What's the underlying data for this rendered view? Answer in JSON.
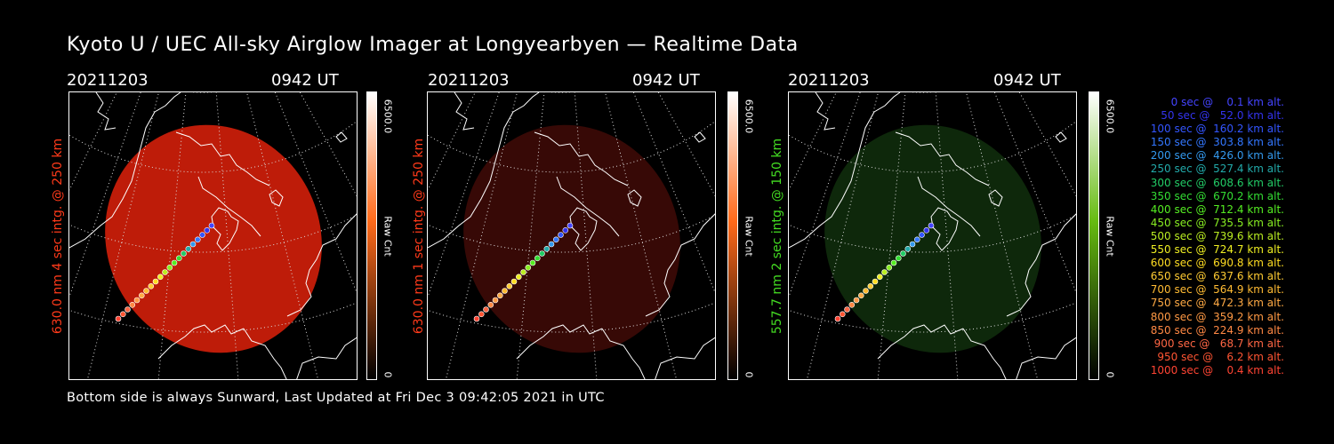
{
  "title": "Kyoto U / UEC All-sky Airglow Imager at Longyearbyen — Realtime Data",
  "footer": "Bottom side is always Sunward, Last Updated at Fri Dec  3 09:42:05 2021 in UTC",
  "panels": [
    {
      "date": "20211203",
      "time": "0942 UT",
      "ylabel": "630.0 nm 4 sec intg. @ 250 km",
      "label_color": "#ff3a1a",
      "tone": "#c81e0a",
      "tone_opacity": 0.95,
      "colorbar": {
        "max": "6500.0",
        "unit": "Raw Cnt",
        "min": "0",
        "top_color": "#ffffff",
        "mid_color": "#ff6a1a",
        "bottom_color": "#000000"
      }
    },
    {
      "date": "20211203",
      "time": "0942 UT",
      "ylabel": "630.0 nm 1 sec intg. @ 250 km",
      "label_color": "#ff3a1a",
      "tone": "#3a0a06",
      "tone_opacity": 0.95,
      "colorbar": {
        "max": "6500.0",
        "unit": "Raw Cnt",
        "min": "0",
        "top_color": "#ffffff",
        "mid_color": "#ff6a1a",
        "bottom_color": "#000000"
      }
    },
    {
      "date": "20211203",
      "time": "0942 UT",
      "ylabel": "557.7 nm 2 sec intg. @ 150 km",
      "label_color": "#44dd22",
      "tone": "#0f2a0c",
      "tone_opacity": 0.95,
      "colorbar": {
        "max": "6500.0",
        "unit": "Raw Cnt",
        "min": "0",
        "top_color": "#ffffff",
        "mid_color": "#66bb11",
        "bottom_color": "#000000"
      }
    }
  ],
  "legend": [
    {
      "text": "   0 sec @    0.1 km alt.",
      "color": "#4444ff"
    },
    {
      "text": "  50 sec @   52.0 km alt.",
      "color": "#3333ee"
    },
    {
      "text": " 100 sec @  160.2 km alt.",
      "color": "#3355ff"
    },
    {
      "text": " 150 sec @  303.8 km alt.",
      "color": "#3377ff"
    },
    {
      "text": " 200 sec @  426.0 km alt.",
      "color": "#3399ee"
    },
    {
      "text": " 250 sec @  527.4 km alt.",
      "color": "#22aaaa"
    },
    {
      "text": " 300 sec @  608.6 km alt.",
      "color": "#22cc66"
    },
    {
      "text": " 350 sec @  670.2 km alt.",
      "color": "#33dd33"
    },
    {
      "text": " 400 sec @  712.4 km alt.",
      "color": "#55ee22"
    },
    {
      "text": " 450 sec @  735.5 km alt.",
      "color": "#88ee22"
    },
    {
      "text": " 500 sec @  739.6 km alt.",
      "color": "#bbee22"
    },
    {
      "text": " 550 sec @  724.7 km alt.",
      "color": "#eeee22"
    },
    {
      "text": " 600 sec @  690.8 km alt.",
      "color": "#ffdd22"
    },
    {
      "text": " 650 sec @  637.6 km alt.",
      "color": "#ffcc33"
    },
    {
      "text": " 700 sec @  564.9 km alt.",
      "color": "#ffbb33"
    },
    {
      "text": " 750 sec @  472.3 km alt.",
      "color": "#ffaa44"
    },
    {
      "text": " 800 sec @  359.2 km alt.",
      "color": "#ff9944"
    },
    {
      "text": " 850 sec @  224.9 km alt.",
      "color": "#ff8844"
    },
    {
      "text": " 900 sec @   68.7 km alt.",
      "color": "#ff6644"
    },
    {
      "text": " 950 sec @    6.2 km alt.",
      "color": "#ff5533"
    },
    {
      "text": "1000 sec @    0.4 km alt.",
      "color": "#ff4433"
    }
  ]
}
